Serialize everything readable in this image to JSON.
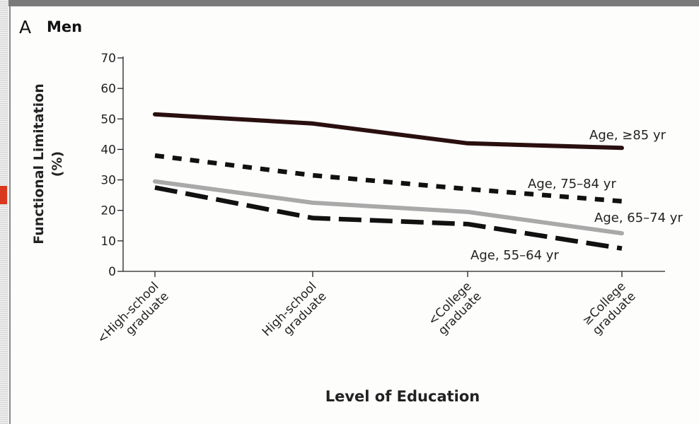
{
  "panel": {
    "letter": "A",
    "title": "Men"
  },
  "chart_data": {
    "type": "line",
    "title": "Men",
    "xlabel": "Level of Education",
    "ylabel_lines": [
      "Functional Limitation",
      "(%)"
    ],
    "categories": [
      [
        "<High-school",
        "graduate"
      ],
      [
        "High-school",
        "graduate"
      ],
      [
        "<College",
        "graduate"
      ],
      [
        "≥College",
        "graduate"
      ]
    ],
    "ylim": [
      0,
      70
    ],
    "yticks": [
      0,
      10,
      20,
      30,
      40,
      50,
      60,
      70
    ],
    "grid": false,
    "legend": "inline labels at line ends",
    "series": [
      {
        "name": "Age, ≥85 yr",
        "values": [
          51.5,
          48.5,
          42,
          40.5
        ],
        "color": "#2a0f0f",
        "style": "solid"
      },
      {
        "name": "Age, 75–84 yr",
        "values": [
          38,
          31.5,
          27,
          23
        ],
        "color": "#111111",
        "style": "dotted"
      },
      {
        "name": "Age, 65–74 yr",
        "values": [
          29.5,
          22.5,
          19.5,
          12.5
        ],
        "color": "#a9a9a9",
        "style": "solid"
      },
      {
        "name": "Age, 55–64 yr",
        "values": [
          27.5,
          17.5,
          15.5,
          7.5
        ],
        "color": "#111111",
        "style": "dashed"
      }
    ]
  }
}
